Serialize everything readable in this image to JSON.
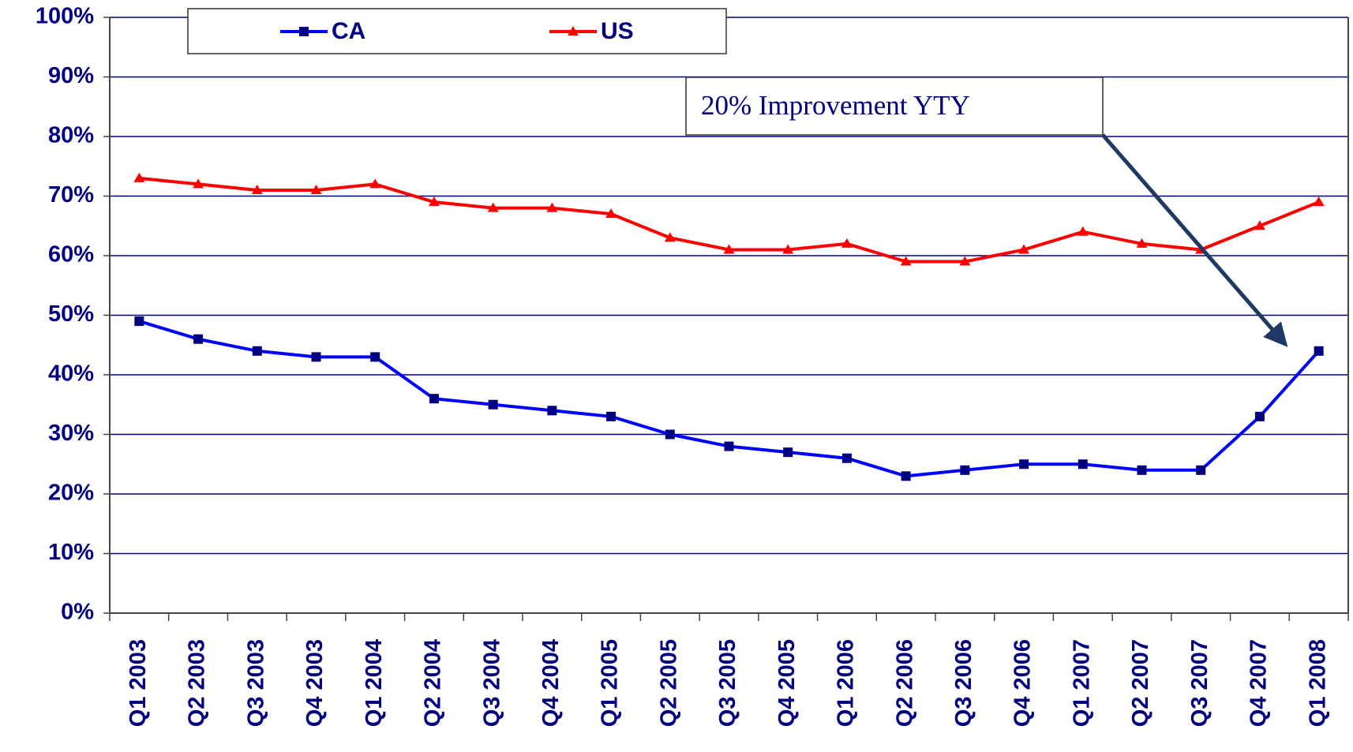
{
  "chart_data": {
    "type": "line",
    "categories": [
      "Q1 2003",
      "Q2 2003",
      "Q3 2003",
      "Q4 2003",
      "Q1 2004",
      "Q2 2004",
      "Q3 2004",
      "Q4 2004",
      "Q1 2005",
      "Q2 2005",
      "Q3 2005",
      "Q4 2005",
      "Q1 2006",
      "Q2 2006",
      "Q3 2006",
      "Q4 2006",
      "Q1 2007",
      "Q2 2007",
      "Q3 2007",
      "Q4 2007",
      "Q1 2008"
    ],
    "series": [
      {
        "name": "CA",
        "color": "#0000ff",
        "marker": "square",
        "marker_color": "#000080",
        "values": [
          49,
          46,
          44,
          43,
          43,
          36,
          35,
          34,
          33,
          30,
          28,
          27,
          26,
          23,
          24,
          25,
          25,
          24,
          24,
          33,
          44
        ]
      },
      {
        "name": "US",
        "color": "#ff0000",
        "marker": "triangle",
        "marker_color": "#ff0000",
        "values": [
          73,
          72,
          71,
          71,
          72,
          69,
          68,
          68,
          67,
          63,
          61,
          61,
          62,
          59,
          59,
          61,
          64,
          62,
          61,
          65,
          69
        ]
      }
    ],
    "ylim": [
      0,
      100
    ],
    "yticks": [
      {
        "value": 0,
        "label": "0%"
      },
      {
        "value": 10,
        "label": "10%"
      },
      {
        "value": 20,
        "label": "20%"
      },
      {
        "value": 30,
        "label": "30%"
      },
      {
        "value": 40,
        "label": "40%"
      },
      {
        "value": 50,
        "label": "50%"
      },
      {
        "value": 60,
        "label": "60%"
      },
      {
        "value": 70,
        "label": "70%"
      },
      {
        "value": 80,
        "label": "80%"
      },
      {
        "value": 90,
        "label": "90%"
      },
      {
        "value": 100,
        "label": "100%"
      }
    ],
    "grid": true,
    "annotation": "20% Improvement YTY"
  }
}
